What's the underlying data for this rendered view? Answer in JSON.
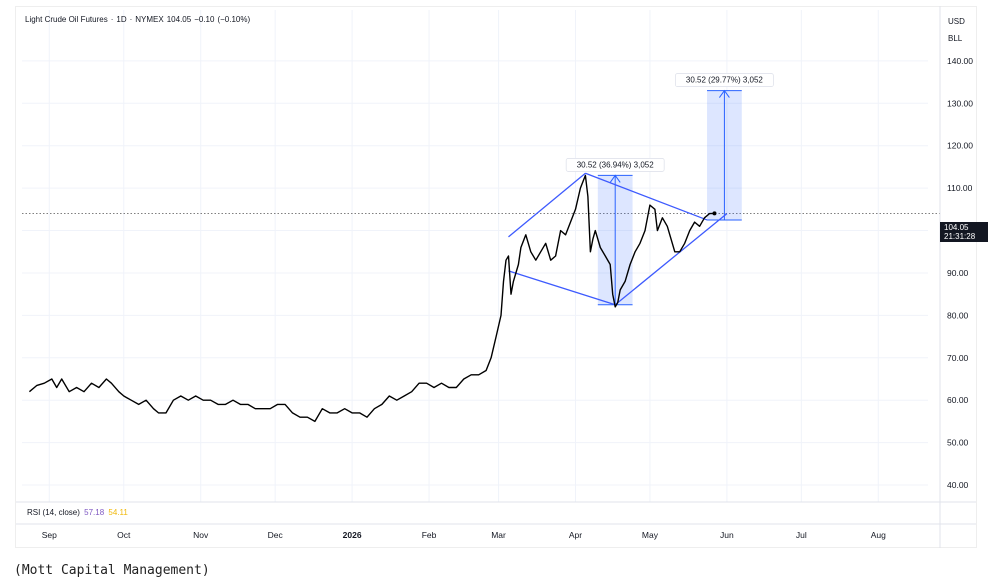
{
  "chart_data": {
    "type": "line",
    "title": "Light Crude Oil Futures",
    "title_parts": [
      "Light Crude Oil Futures",
      "·",
      "1D",
      "·",
      "NYMEX",
      "104.05",
      "−0.10",
      "(−0.10%)"
    ],
    "currency": "USD",
    "unit": "BLL",
    "ylim": [
      36,
      152
    ],
    "y_ticks": [
      "40.00",
      "50.00",
      "60.00",
      "70.00",
      "80.00",
      "90.00",
      "100.00",
      "110.00",
      "120.00",
      "130.00",
      "140.00"
    ],
    "x_ticks": [
      {
        "label": "Sep",
        "day": 8
      },
      {
        "label": "Oct",
        "day": 38
      },
      {
        "label": "Nov",
        "day": 69
      },
      {
        "label": "Dec",
        "day": 99
      },
      {
        "label": "2026",
        "day": 130
      },
      {
        "label": "Feb",
        "day": 161
      },
      {
        "label": "Mar",
        "day": 189
      },
      {
        "label": "Apr",
        "day": 220
      },
      {
        "label": "May",
        "day": 250
      },
      {
        "label": "Jun",
        "day": 281
      },
      {
        "label": "Jul",
        "day": 311
      },
      {
        "label": "Aug",
        "day": 342
      }
    ],
    "xlim": [
      -3,
      358
    ],
    "series": [
      {
        "name": "",
        "color": "#000000",
        "points": [
          [
            0,
            62
          ],
          [
            3,
            63.5
          ],
          [
            6,
            64
          ],
          [
            9,
            65
          ],
          [
            11,
            63
          ],
          [
            13,
            65
          ],
          [
            16,
            62
          ],
          [
            19,
            63
          ],
          [
            22,
            62
          ],
          [
            25,
            64
          ],
          [
            28,
            63
          ],
          [
            31,
            65
          ],
          [
            33,
            64
          ],
          [
            36,
            62
          ],
          [
            38,
            61
          ],
          [
            41,
            60
          ],
          [
            44,
            59
          ],
          [
            47,
            60
          ],
          [
            50,
            58
          ],
          [
            52,
            57
          ],
          [
            55,
            57
          ],
          [
            58,
            60
          ],
          [
            61,
            61
          ],
          [
            64,
            60
          ],
          [
            67,
            61
          ],
          [
            70,
            60
          ],
          [
            73,
            60
          ],
          [
            76,
            59
          ],
          [
            79,
            59
          ],
          [
            82,
            60
          ],
          [
            85,
            59
          ],
          [
            88,
            59
          ],
          [
            91,
            58
          ],
          [
            94,
            58
          ],
          [
            97,
            58
          ],
          [
            100,
            59
          ],
          [
            103,
            59
          ],
          [
            106,
            57
          ],
          [
            109,
            56
          ],
          [
            112,
            56
          ],
          [
            115,
            55
          ],
          [
            118,
            58
          ],
          [
            121,
            57
          ],
          [
            124,
            57
          ],
          [
            127,
            58
          ],
          [
            130,
            57
          ],
          [
            133,
            57
          ],
          [
            136,
            56
          ],
          [
            139,
            58
          ],
          [
            142,
            59
          ],
          [
            145,
            61
          ],
          [
            148,
            60
          ],
          [
            151,
            61
          ],
          [
            154,
            62
          ],
          [
            157,
            64
          ],
          [
            160,
            64
          ],
          [
            163,
            63
          ],
          [
            166,
            64
          ],
          [
            169,
            63
          ],
          [
            172,
            63
          ],
          [
            175,
            65
          ],
          [
            178,
            66
          ],
          [
            181,
            66
          ],
          [
            184,
            67
          ],
          [
            186,
            70
          ],
          [
            188,
            75
          ],
          [
            190,
            80
          ],
          [
            191,
            88
          ],
          [
            192,
            93
          ],
          [
            193,
            94
          ],
          [
            194,
            85
          ],
          [
            195,
            88
          ],
          [
            197,
            92
          ],
          [
            198,
            96
          ],
          [
            200,
            99
          ],
          [
            202,
            95
          ],
          [
            204,
            93
          ],
          [
            206,
            95
          ],
          [
            208,
            97
          ],
          [
            210,
            93
          ],
          [
            212,
            94
          ],
          [
            214,
            100
          ],
          [
            216,
            99
          ],
          [
            218,
            102
          ],
          [
            220,
            105
          ],
          [
            222,
            110
          ],
          [
            224,
            113
          ],
          [
            225,
            108
          ],
          [
            226,
            95
          ],
          [
            227,
            98
          ],
          [
            228,
            100
          ],
          [
            230,
            96
          ],
          [
            232,
            94
          ],
          [
            234,
            92
          ],
          [
            235,
            85
          ],
          [
            236,
            82
          ],
          [
            237,
            83
          ],
          [
            238,
            86
          ],
          [
            240,
            88
          ],
          [
            242,
            92
          ],
          [
            244,
            95
          ],
          [
            246,
            97
          ],
          [
            248,
            100
          ],
          [
            250,
            106
          ],
          [
            252,
            105
          ],
          [
            253,
            100
          ],
          [
            255,
            103
          ],
          [
            257,
            101
          ],
          [
            259,
            97
          ],
          [
            260,
            95
          ],
          [
            262,
            95
          ],
          [
            264,
            97
          ],
          [
            266,
            100
          ],
          [
            268,
            102
          ],
          [
            270,
            101
          ],
          [
            272,
            103
          ],
          [
            274,
            104
          ],
          [
            276,
            104.05
          ]
        ]
      }
    ],
    "last_price": {
      "value": 104.05,
      "label": "104.05",
      "time": "21:31:28"
    },
    "annotations": [
      {
        "label": "30.52 (36.94%) 3,052",
        "from": 82.5,
        "to": 113.0,
        "x_start": 229,
        "x_end": 243
      },
      {
        "label": "30.52 (29.77%) 3,052",
        "from": 102.5,
        "to": 133.0,
        "x_start": 273,
        "x_end": 287
      }
    ],
    "pattern_lines": [
      {
        "from": [
          193,
          98.5
        ],
        "to": [
          224,
          113.5
        ]
      },
      {
        "from": [
          193,
          90.5
        ],
        "to": [
          236,
          82.5
        ]
      },
      {
        "from": [
          224,
          113.5
        ],
        "to": [
          273,
          102.5
        ]
      },
      {
        "from": [
          236,
          82.5
        ],
        "to": [
          281,
          104
        ]
      }
    ],
    "rsi": {
      "label": "RSI (14, close)",
      "value1": "57.18",
      "value2": "54.11"
    },
    "source_caption": "(Mott Capital Management)"
  }
}
